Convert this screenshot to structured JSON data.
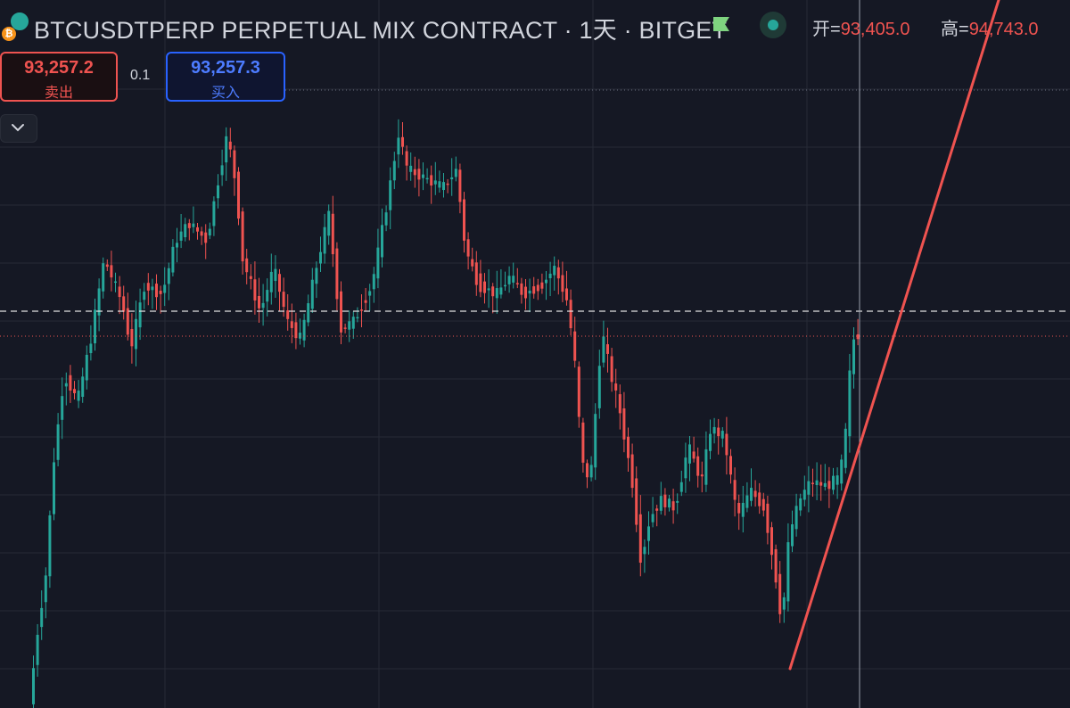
{
  "header": {
    "symbol_title": "BTCUSDTPERP PERPETUAL MIX CONTRACT · 1天 · BITGET",
    "coin_icon": "btc-usdt-pair-icon",
    "flag_icon": "flag-icon",
    "status_icon": "market-status-icon",
    "open_label": "开=",
    "open_value": "93,405.0",
    "high_label": "高=",
    "high_value": "94,743.0"
  },
  "trade_panel": {
    "sell_price": "93,257.2",
    "sell_label": "卖出",
    "spread": "0.1",
    "buy_price": "93,257.3",
    "buy_label": "买入",
    "collapse_icon": "chevron-down-icon"
  },
  "colors": {
    "background": "#151824",
    "up": "#26a69a",
    "down": "#ef5350",
    "buy": "#2962ff",
    "grid": "#262a36"
  },
  "chart_data": {
    "type": "candlestick",
    "interval": "1天",
    "grid": true,
    "crosshair": true,
    "trend_line": true
  }
}
